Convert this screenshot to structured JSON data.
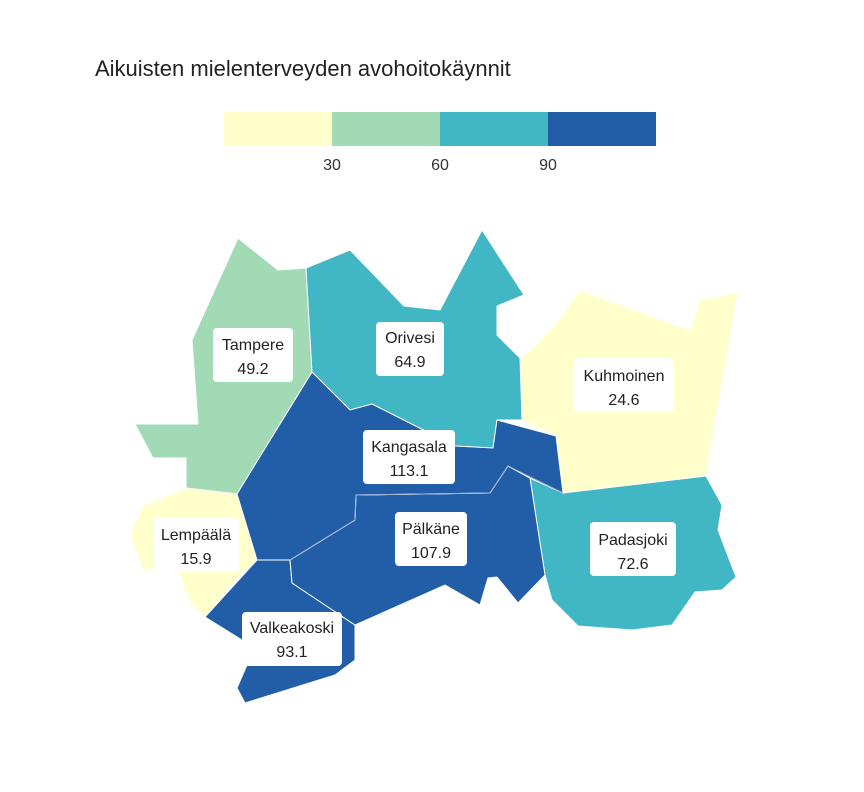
{
  "title": "Aikuisten mielenterveyden avohoitokäynnit",
  "legend": {
    "breaks": [
      30,
      60,
      90
    ],
    "colors": [
      "#ffffcc",
      "#a1dab4",
      "#41b6c4",
      "#225ea8"
    ]
  },
  "regions": [
    {
      "name": "Tampere",
      "value": "49.2",
      "color": "#a1dab4"
    },
    {
      "name": "Orivesi",
      "value": "64.9",
      "color": "#41b6c4"
    },
    {
      "name": "Kuhmoinen",
      "value": "24.6",
      "color": "#ffffcc"
    },
    {
      "name": "Kangasala",
      "value": "113.1",
      "color": "#225ea8"
    },
    {
      "name": "Lempäälä",
      "value": "15.9",
      "color": "#ffffcc"
    },
    {
      "name": "Pälkäne",
      "value": "107.9",
      "color": "#225ea8"
    },
    {
      "name": "Padasjoki",
      "value": "72.6",
      "color": "#41b6c4"
    },
    {
      "name": "Valkeakoski",
      "value": "93.1",
      "color": "#225ea8"
    }
  ]
}
